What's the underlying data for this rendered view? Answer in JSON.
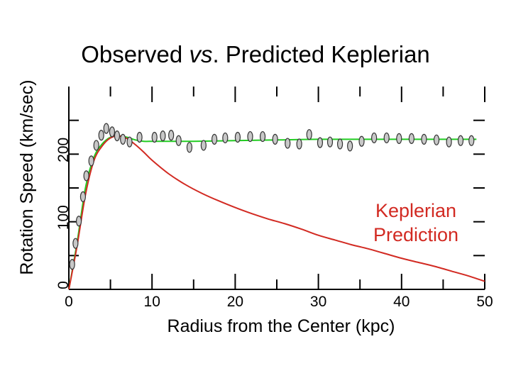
{
  "chart_data": {
    "type": "scatter",
    "title_main": "Observed ",
    "title_italic": "vs",
    "title_rest": ". Predicted Keplerian",
    "xlabel": "Radius from the Center (kpc)",
    "ylabel": "Rotation Speed (km/sec)",
    "xlim": [
      0,
      50
    ],
    "ylim": [
      0,
      300
    ],
    "x_ticks": [
      0,
      10,
      20,
      30,
      40,
      50
    ],
    "x_tick_labels": [
      "0",
      "10",
      "20",
      "30",
      "40",
      "50"
    ],
    "y_ticks": [
      0,
      100,
      200
    ],
    "y_tick_labels": [
      "0",
      "100",
      "200"
    ],
    "annotation": [
      "Keplerian",
      "Prediction"
    ],
    "colors": {
      "observed_fit": "#22cc22",
      "keplerian": "#d22a22",
      "points_fill": "#c8c8c8",
      "points_stroke": "#333333",
      "axes": "#000000"
    },
    "series": [
      {
        "name": "Observed",
        "kind": "points",
        "x": [
          0.4,
          0.8,
          1.2,
          1.7,
          2.1,
          2.7,
          3.3,
          3.9,
          4.5,
          5.2,
          5.8,
          6.5,
          7.3,
          8.5,
          10.3,
          11.3,
          12.3,
          13.2,
          14.5,
          16.2,
          17.5,
          18.8,
          20.3,
          21.8,
          23.3,
          24.8,
          26.3,
          27.7,
          28.9,
          30.2,
          31.4,
          32.6,
          33.8,
          35.2,
          36.7,
          38.2,
          39.7,
          41.2,
          42.7,
          44.2,
          45.7,
          47.1,
          48.4
        ],
        "y": [
          37,
          68,
          101,
          137,
          168,
          190,
          213,
          228,
          238,
          233,
          227,
          222,
          218,
          225,
          225,
          227,
          228,
          220,
          210,
          213,
          222,
          224,
          225,
          226,
          226,
          222,
          216,
          215,
          229,
          217,
          218,
          215,
          212,
          219,
          224,
          224,
          223,
          223,
          222,
          221,
          218,
          220,
          220
        ]
      },
      {
        "name": "Observed fit",
        "kind": "line",
        "x": [
          0,
          1,
          2,
          3,
          4,
          5,
          6,
          7,
          8,
          9,
          10,
          11,
          12,
          15,
          20,
          25,
          30,
          35,
          40,
          45,
          49
        ],
        "y": [
          0,
          70,
          150,
          195,
          215,
          225,
          227,
          225,
          221,
          219,
          219,
          219,
          219,
          219,
          220,
          221,
          222,
          222,
          222,
          222,
          222
        ]
      },
      {
        "name": "Keplerian Prediction",
        "kind": "line",
        "x": [
          0,
          1,
          2,
          3,
          4,
          5,
          6,
          7,
          8,
          9,
          10,
          12,
          14,
          16,
          18,
          20,
          22,
          24,
          26,
          28,
          30,
          32,
          34,
          36,
          38,
          40,
          42,
          44,
          46,
          48,
          50
        ],
        "y": [
          0,
          65,
          140,
          190,
          212,
          224,
          227,
          223,
          214,
          203,
          191,
          171,
          155,
          142,
          131,
          121,
          112,
          104,
          97,
          89,
          80,
          73,
          66,
          60,
          53,
          46,
          40,
          34,
          27,
          20,
          12
        ]
      }
    ]
  }
}
